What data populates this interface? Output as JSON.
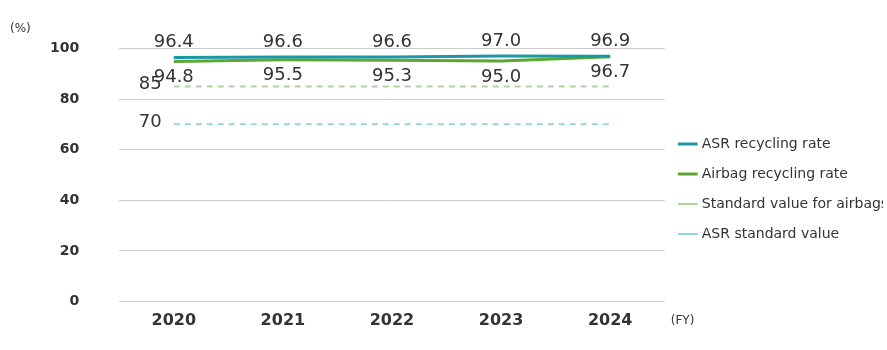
{
  "chart_data": {
    "type": "line",
    "y_label": "(%)",
    "x_label": "(FY)",
    "categories": [
      "2020",
      "2021",
      "2022",
      "2023",
      "2024"
    ],
    "series": [
      {
        "name": "ASR recycling rate",
        "color": "#1b97a8",
        "line_style": "solid",
        "values": [
          96.4,
          96.6,
          96.6,
          97.0,
          96.9
        ],
        "value_labels": [
          "96.4",
          "96.6",
          "96.6",
          "97.0",
          "96.9"
        ]
      },
      {
        "name": "Airbag recycling rate",
        "color": "#5aa832",
        "line_style": "solid",
        "values": [
          94.8,
          95.5,
          95.3,
          95.0,
          96.7
        ],
        "value_labels": [
          "94.8",
          "95.5",
          "95.3",
          "95.0",
          "96.7"
        ]
      },
      {
        "name": "Standard value for airbags",
        "color": "#a9d79b",
        "line_style": "dashed",
        "values": [
          85,
          85,
          85,
          85,
          85
        ],
        "value_labels": [
          "85",
          null,
          null,
          null,
          null
        ]
      },
      {
        "name": "ASR standard value",
        "color": "#9ad2dc",
        "line_style": "dashed",
        "values": [
          70,
          70,
          70,
          70,
          70
        ],
        "value_labels": [
          "70",
          null,
          null,
          null,
          null
        ]
      }
    ],
    "ylim": [
      0,
      100
    ],
    "yticks": [
      0,
      20,
      40,
      60,
      80,
      100
    ],
    "grid": true,
    "legend": "right",
    "data_labels": true
  }
}
